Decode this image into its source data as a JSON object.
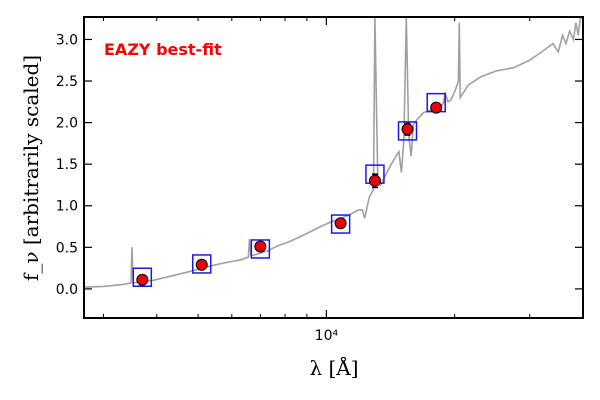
{
  "chart_data": {
    "type": "scatter",
    "title": "",
    "annotation": "EAZY best-fit",
    "xlabel": "λ [Å]",
    "ylabel": "f_ν [arbitrarily scaled]",
    "xscale": "log",
    "xlim": [
      2700,
      40000
    ],
    "ylim": [
      -0.35,
      3.27
    ],
    "x_ticks": [
      {
        "value": 10000,
        "label": "10⁴"
      }
    ],
    "y_ticks": [
      {
        "value": 0.0,
        "label": "0.0"
      },
      {
        "value": 0.5,
        "label": "0.5"
      },
      {
        "value": 1.0,
        "label": "1.0"
      },
      {
        "value": 1.5,
        "label": "1.5"
      },
      {
        "value": 2.0,
        "label": "2.0"
      },
      {
        "value": 2.5,
        "label": "2.5"
      },
      {
        "value": 3.0,
        "label": "3.0"
      }
    ],
    "grid": false,
    "colors": {
      "observed": "#e8000b",
      "model_point": "#1a1ae6",
      "template": "#a0a0a0",
      "annotation": "#ff0000"
    },
    "series": [
      {
        "kind": "model_points",
        "x": [
          3700,
          5100,
          7000,
          10800,
          13000,
          15500,
          18100
        ],
        "y": [
          0.14,
          0.3,
          0.48,
          0.78,
          1.38,
          1.9,
          2.24
        ]
      },
      {
        "kind": "observed",
        "x": [
          3700,
          5100,
          7000,
          10800,
          13000,
          15500,
          18100
        ],
        "y": [
          0.11,
          0.29,
          0.51,
          0.79,
          1.3,
          1.92,
          2.18
        ],
        "yerr": [
          0.03,
          0.03,
          0.03,
          0.03,
          0.08,
          0.07,
          0.04
        ]
      },
      {
        "kind": "template",
        "x": [
          2700,
          3000,
          3300,
          3480,
          3500,
          3520,
          3600,
          3900,
          4200,
          4700,
          5200,
          5600,
          6000,
          6300,
          6560,
          6600,
          6650,
          6900,
          7300,
          7700,
          8200,
          8700,
          9200,
          9700,
          10200,
          10700,
          11200,
          11600,
          11900,
          12150,
          12300,
          12600,
          12900,
          13000,
          13200,
          13400,
          13800,
          14200,
          14500,
          14800,
          15000,
          15200,
          15400,
          15600,
          15800,
          16000,
          16400,
          16700,
          16900,
          17500,
          18200,
          18600,
          18800,
          19000,
          19300,
          19600,
          20100,
          20400,
          20500,
          20600,
          21500,
          23000,
          25000,
          27500,
          30000,
          32000,
          34000,
          35000,
          35800,
          36500,
          37200,
          38000,
          38500,
          39000,
          39400,
          40000
        ],
        "y": [
          0.02,
          0.03,
          0.05,
          0.07,
          0.5,
          0.07,
          0.08,
          0.1,
          0.14,
          0.2,
          0.26,
          0.3,
          0.33,
          0.35,
          0.38,
          0.6,
          0.4,
          0.42,
          0.46,
          0.52,
          0.57,
          0.63,
          0.69,
          0.75,
          0.8,
          0.84,
          0.88,
          0.92,
          0.95,
          0.95,
          0.85,
          1.1,
          1.2,
          3.27,
          1.3,
          1.25,
          1.38,
          1.5,
          1.58,
          1.65,
          1.4,
          1.8,
          3.27,
          1.85,
          1.6,
          1.98,
          2.05,
          2.09,
          2.12,
          2.15,
          2.18,
          2.2,
          2.23,
          2.35,
          2.25,
          2.27,
          2.4,
          2.5,
          3.2,
          2.3,
          2.45,
          2.55,
          2.62,
          2.66,
          2.75,
          2.85,
          2.95,
          2.85,
          3.05,
          2.95,
          3.1,
          3.0,
          3.2,
          3.05,
          3.25,
          3.27
        ]
      }
    ]
  }
}
